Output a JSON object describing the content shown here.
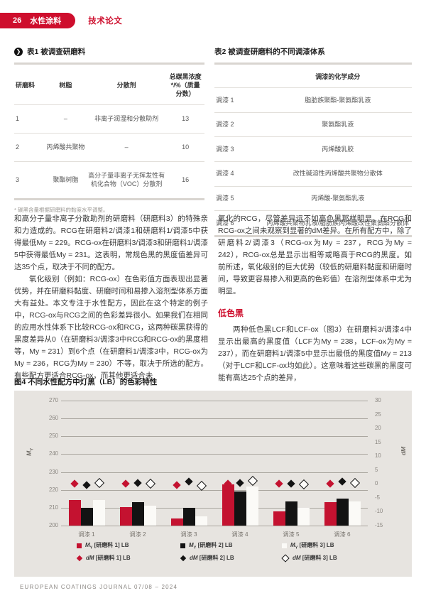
{
  "colors": {
    "accent": "#ce0e2d",
    "chart_red": "#c41230",
    "chart_black": "#131313",
    "chart_white": "#fbfaf7",
    "panel_bg": "#e7e4e0"
  },
  "header": {
    "page_number": "26",
    "section": "水性涂料",
    "article_type": "技术论文"
  },
  "table1": {
    "title": "表1 被调查研磨料",
    "headers": [
      "研磨料",
      "树脂",
      "分散剂",
      "总碳黑浓度*/%（质量分数）"
    ],
    "rows": [
      [
        "1",
        "–",
        "非离子润湿和分散助剂",
        "13"
      ],
      [
        "2",
        "丙烯酸共聚物",
        "–",
        "10"
      ],
      [
        "3",
        "聚酯树脂",
        "高分子量非离子无挥发性有机化合物（VOC）分散剂",
        "16"
      ]
    ],
    "footnote": "* 碳黑含量根据研磨料的黏度水平调整。"
  },
  "table2": {
    "title": "表2 被调查研磨料的不同调漆体系",
    "col_header": "调漆的化学成分",
    "rows": [
      [
        "调漆 1",
        "脂肪族聚酯-聚氨酯乳液"
      ],
      [
        "调漆 2",
        "聚氨酯乳液"
      ],
      [
        "调漆 3",
        "丙烯酸乳胶"
      ],
      [
        "调漆 4",
        "改性碱溶性丙烯酸共聚物分散体"
      ],
      [
        "调漆 5",
        "丙烯酸-聚氨酯乳液"
      ],
      [
        "调漆 6",
        "丙烯酸共聚物乳液/脂肪族丙烯酸改性聚氨酯分散体"
      ]
    ]
  },
  "article": {
    "col1_para1": "和高分子量非离子分散助剂的研磨料（研磨料3）的特殊亲和力造成的。RCG在研磨料2/调漆1和研磨料1/调漆5中获得最低My = 229。RCG-ox在研磨料3/调漆3和研磨料1/调漆5中获得最低My = 231。这表明，常规色黑的黑度值差异可达35个点，取决于不同的配方。",
    "col1_para2": "氧化级别（例如：RCG-ox）在色彩值方面表现出显著优势，并在研磨料黏度、研磨时间和易掺入溶剂型体系方面大有益处。本文专注于水性配方，因此在这个特定的例子中，RCG-ox与RCG之间的色彩差异很小。如果我们在相同的应用水性体系下比较RCG-ox和RCG，这两种碳黑获得的黑度差异从0（在研磨料3/调漆3中RCG和RCG-ox的黑度相等，My = 231）到6个点（在研磨料1/调漆3中，RCG-ox为My = 236，RCG为My = 230）不等，取决于所选的配方。有些配方更适合RCG-ox，而其他更适合未",
    "col2_para1": "氧化的RCG，尽管差异远不如高色黑那样明显。在RCG和RCG-ox之间未观察到显著的dM差异。在所有配方中，除了研磨料2/调漆3（RCG-ox为My = 237，RCG为My = 242），RCG-ox总是显示出相等或略高于RCG的黑度。如前所述，氧化级别的巨大优势（较低的研磨料黏度和研磨时间，导致更容易掺入和更高的色彩值）在溶剂型体系中尤为明显。",
    "col2_heading": "低色黑",
    "col2_para2": "两种低色黑LCF和LCF-ox（图3）在研磨料3/调漆4中显示出最高的黑度值（LCF为My = 238，LCF-ox为My = 237），而在研磨料1/调漆5中显示出最低的黑度值My = 213（对于LCF和LCF-ox均如此）。这意味着这些碳黑的黑度可能有高达25个点的差异，"
  },
  "figure": {
    "caption": "图4 不同水性配方中灯黑（LB）的色彩特性"
  },
  "chart_data": {
    "type": "bar",
    "title": "图4 不同水性配方中灯黑（LB）的色彩特性",
    "categories": [
      "调漆 1",
      "调漆 2",
      "调漆 3",
      "调漆 4",
      "调漆 5",
      "调漆 6"
    ],
    "left_axis": {
      "label": "My",
      "min": 200,
      "max": 270,
      "step": 10
    },
    "right_axis": {
      "label": "dM",
      "min": -15,
      "max": 30,
      "step": 5
    },
    "grid": "horizontal",
    "legend_position": "bottom",
    "bar_series": [
      {
        "name": "My [研磨料 1] LB",
        "color": "#c41230",
        "values": [
          214.5,
          210.5,
          204,
          223,
          208,
          213
        ]
      },
      {
        "name": "My [研磨料 2] LB",
        "color": "#131313",
        "values": [
          210,
          213,
          210,
          219,
          213.5,
          215
        ]
      },
      {
        "name": "My [研磨料 3] LB",
        "color": "#fbfaf7",
        "values": [
          214.5,
          211,
          205,
          222,
          210,
          213.5
        ]
      }
    ],
    "marker_series": [
      {
        "name": "dM [研磨料 1] LB",
        "style": "filled-red",
        "values": [
          0,
          0,
          -0.5,
          0,
          0,
          0
        ]
      },
      {
        "name": "dM [研磨料 2] LB",
        "style": "filled-black",
        "values": [
          -0.5,
          0.3,
          0.8,
          0.4,
          0,
          0.9
        ]
      },
      {
        "name": "dM [研磨料 3] LB",
        "style": "open",
        "values": [
          0.5,
          0.3,
          -0.3,
          1.4,
          0,
          0.5
        ]
      }
    ]
  },
  "footer": {
    "text": "EUROPEAN COATINGS JOURNAL 07/08 – 2024"
  }
}
